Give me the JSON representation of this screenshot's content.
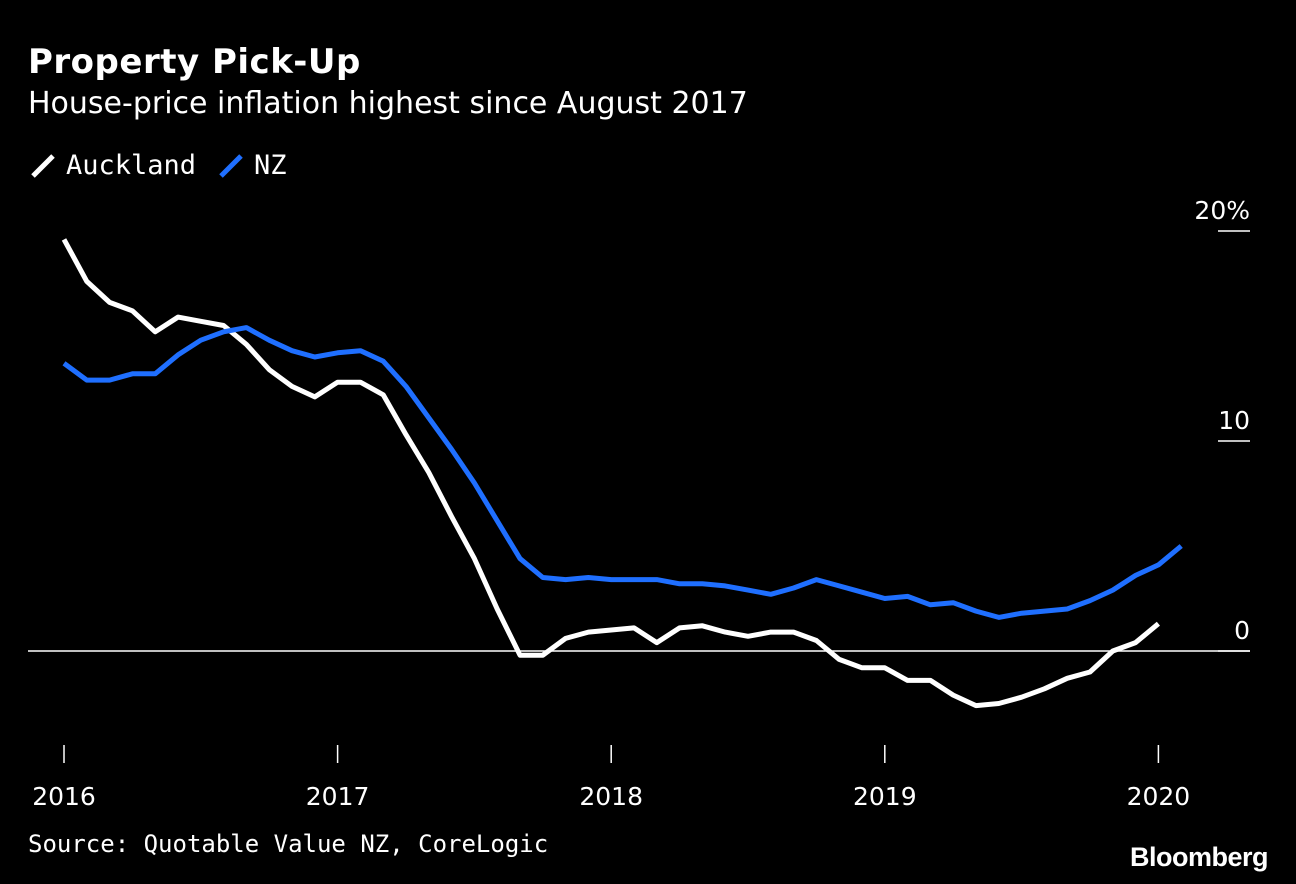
{
  "title": "Property Pick-Up",
  "subtitle": "House-price inflation highest since August 2017",
  "source": "Source: Quotable Value NZ, CoreLogic",
  "brand": "Bloomberg",
  "chart_data": {
    "type": "line",
    "title": "Property Pick-Up",
    "subtitle": "House-price inflation highest since August 2017",
    "xlabel": "",
    "ylabel": "",
    "ylim": [
      -5,
      20
    ],
    "y_ticks": [
      {
        "value": 20,
        "label": "20%"
      },
      {
        "value": 10,
        "label": "10"
      },
      {
        "value": 0,
        "label": "0"
      }
    ],
    "x_ticks": [
      {
        "value": 0,
        "label": "2016"
      },
      {
        "value": 12,
        "label": "2017"
      },
      {
        "value": 24,
        "label": "2018"
      },
      {
        "value": 36,
        "label": "2019"
      },
      {
        "value": 48,
        "label": "2020"
      }
    ],
    "x_range": [
      0,
      49
    ],
    "grid": false,
    "legend_position": "top-left",
    "series": [
      {
        "name": "Auckland",
        "color": "#ffffff",
        "values": [
          19.6,
          17.6,
          16.6,
          16.2,
          15.2,
          15.9,
          15.7,
          15.5,
          14.6,
          13.4,
          12.6,
          12.1,
          12.8,
          12.8,
          12.2,
          10.3,
          8.5,
          6.4,
          4.4,
          2.0,
          -0.2,
          -0.2,
          0.6,
          0.9,
          1.0,
          1.1,
          0.4,
          1.1,
          1.2,
          0.9,
          0.7,
          0.9,
          0.9,
          0.5,
          -0.4,
          -0.8,
          -0.8,
          -1.4,
          -1.4,
          -2.1,
          -2.6,
          -2.5,
          -2.2,
          -1.8,
          -1.3,
          -1.0,
          0.0,
          0.4,
          1.3
        ]
      },
      {
        "name": "NZ",
        "color": "#1f6fff",
        "values": [
          13.7,
          12.9,
          12.9,
          13.2,
          13.2,
          14.1,
          14.8,
          15.2,
          15.4,
          14.8,
          14.3,
          14.0,
          14.2,
          14.3,
          13.8,
          12.6,
          11.1,
          9.6,
          8.0,
          6.2,
          4.4,
          3.5,
          3.4,
          3.5,
          3.4,
          3.4,
          3.4,
          3.2,
          3.2,
          3.1,
          2.9,
          2.7,
          3.0,
          3.4,
          3.1,
          2.8,
          2.5,
          2.6,
          2.2,
          2.3,
          1.9,
          1.6,
          1.8,
          1.9,
          2.0,
          2.4,
          2.9,
          3.6,
          4.1,
          5.0
        ]
      }
    ]
  }
}
